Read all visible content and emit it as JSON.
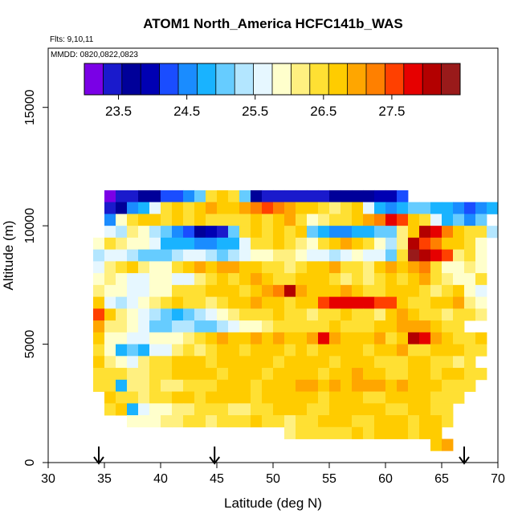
{
  "chart_data": {
    "type": "heatmap",
    "title": "ATOM1 North_America HCFC141b_WAS",
    "flights_label": "Flts: 9,10,11",
    "dates_label": "MMDD: 0820,0822,0823",
    "xlabel": "Latitude (deg N)",
    "ylabel": "Altitude (m)",
    "xlim": [
      30,
      70
    ],
    "ylim": [
      0,
      17500
    ],
    "x_ticks": [
      30,
      35,
      40,
      45,
      50,
      55,
      60,
      65,
      70
    ],
    "y_ticks": [
      0,
      5000,
      10000,
      15000
    ],
    "colorbar": {
      "range": [
        23,
        28.5
      ],
      "tick_values": [
        23.5,
        24.5,
        25.5,
        26.5,
        27.5
      ],
      "tick_labels": [
        "23.5",
        "24.5",
        "25.5",
        "26.5",
        "27.5"
      ],
      "colors": [
        "#7a00e6",
        "#1a1acc",
        "#000099",
        "#0000b3",
        "#1a4dff",
        "#1a8cff",
        "#19b3ff",
        "#66ccff",
        "#b3e6ff",
        "#e6f7ff",
        "#ffffcc",
        "#fff080",
        "#ffe033",
        "#ffcc00",
        "#ffa600",
        "#ff8000",
        "#ff4000",
        "#e60000",
        "#b30000",
        "#991a1a"
      ]
    },
    "arrows_latitude": [
      34.5,
      44.8,
      67.0
    ],
    "cell_size": {
      "lat": 1.0,
      "alt": 500
    },
    "rows": [
      {
        "alt": 11000,
        "lat_start": 35,
        "values": [
          23.1,
          23.3,
          23.5,
          23.6,
          23.7,
          24.1,
          24.3,
          24.6,
          25.0,
          26.4,
          26.8,
          26.5,
          25.2,
          23.6,
          23.5,
          23.4,
          23.4,
          23.4,
          23.4,
          23.5,
          23.6,
          23.6,
          23.7,
          23.8,
          23.9,
          24.0,
          24.1
        ]
      },
      {
        "alt": 10500,
        "lat_start": 35,
        "values": [
          23.4,
          23.7,
          24.5,
          24.9,
          25.5,
          26.3,
          26.6,
          26.5,
          26.7,
          26.9,
          26.6,
          26.8,
          26.9,
          27.3,
          27.5,
          27.2,
          27.0,
          26.7,
          26.6,
          26.5,
          26.2,
          26.4,
          26.7,
          25.5,
          24.8,
          24.6,
          24.8,
          25.0,
          25.2,
          24.9,
          24.7,
          24.5,
          24.3,
          24.6,
          24.8
        ]
      },
      {
        "alt": 10000,
        "lat_start": 35,
        "values": [
          24.5,
          25.8,
          26.3,
          26.6,
          26.8,
          26.4,
          26.7,
          26.5,
          26.6,
          26.5,
          26.4,
          26.3,
          26.5,
          26.6,
          26.4,
          26.7,
          26.9,
          26.3,
          25.9,
          26.1,
          26.5,
          26.3,
          26.6,
          26.9,
          27.3,
          27.9,
          27.6,
          26.8,
          26.5,
          25.5,
          24.9,
          25.1,
          24.6,
          25.1
        ]
      },
      {
        "alt": 9500,
        "lat_start": 35,
        "values": [
          25.6,
          25.4,
          26.2,
          26.0,
          25.4,
          25.1,
          24.5,
          24.2,
          23.6,
          24.0,
          23.3,
          25.0,
          26.3,
          26.8,
          26.5,
          26.6,
          26.4,
          26.6,
          25.2,
          24.9,
          24.6,
          24.6,
          24.7,
          24.9,
          25.0,
          25.2,
          26.1,
          26.8,
          28.2,
          27.8,
          27.2,
          26.8,
          26.3,
          26.4,
          25.4
        ]
      },
      {
        "alt": 9000,
        "lat_start": 34,
        "values": [
          25.9,
          26.3,
          26.1,
          25.9,
          25.8,
          25.6,
          24.9,
          24.8,
          24.7,
          24.6,
          24.6,
          24.8,
          24.9,
          25.7,
          26.3,
          26.5,
          26.6,
          26.4,
          26.2,
          26.0,
          26.3,
          26.7,
          26.9,
          26.7,
          26.3,
          25.8,
          25.4,
          26.1,
          28.2,
          27.5,
          27.2,
          26.8,
          26.6,
          26.3,
          25.8
        ]
      },
      {
        "alt": 8500,
        "lat_start": 34,
        "values": [
          25.3,
          25.7,
          25.6,
          25.3,
          25.2,
          25.1,
          25.2,
          25.4,
          25.5,
          25.6,
          25.4,
          25.1,
          25.3,
          25.6,
          25.8,
          25.9,
          26.1,
          26.2,
          25.8,
          25.6,
          25.5,
          25.4,
          25.6,
          25.8,
          25.7,
          25.5,
          25.2,
          26.5,
          28.3,
          28.0,
          27.9,
          27.6,
          26.2,
          26.5,
          25.8
        ]
      },
      {
        "alt": 8000,
        "lat_start": 34,
        "values": [
          25.6,
          26.2,
          26.5,
          26.6,
          26.2,
          25.8,
          25.8,
          26.4,
          26.7,
          26.9,
          26.8,
          27.0,
          26.9,
          26.7,
          26.6,
          26.5,
          26.3,
          26.2,
          26.5,
          26.6,
          26.7,
          26.9,
          26.5,
          26.3,
          26.1,
          26.6,
          26.9,
          26.8,
          27.0,
          27.2,
          26.4,
          26.0,
          25.9,
          26.1,
          25.9
        ]
      },
      {
        "alt": 7500,
        "lat_start": 34,
        "values": [
          25.9,
          26.1,
          25.8,
          25.5,
          25.6,
          25.8,
          25.9,
          25.7,
          25.6,
          26.1,
          26.3,
          26.6,
          26.5,
          26.7,
          26.9,
          26.6,
          26.3,
          26.4,
          26.7,
          26.8,
          26.6,
          26.4,
          26.2,
          26.3,
          26.2,
          26.4,
          26.7,
          26.5,
          26.6,
          26.9,
          26.5,
          26.2,
          25.8,
          26.0,
          26.3
        ]
      },
      {
        "alt": 7000,
        "lat_start": 34,
        "values": [
          26.2,
          25.8,
          25.9,
          25.5,
          25.6,
          25.8,
          26.0,
          26.3,
          26.5,
          26.4,
          26.6,
          26.8,
          26.7,
          26.5,
          26.6,
          26.9,
          27.2,
          28.0,
          26.9,
          26.7,
          26.6,
          26.8,
          26.9,
          26.7,
          26.5,
          26.4,
          26.6,
          26.8,
          26.6,
          26.3,
          26.1,
          26.4,
          26.8,
          25.9,
          25.7
        ]
      },
      {
        "alt": 6500,
        "lat_start": 34,
        "values": [
          26.7,
          25.6,
          25.3,
          25.5,
          25.9,
          26.1,
          26.4,
          26.6,
          26.5,
          26.3,
          26.2,
          26.4,
          26.6,
          26.7,
          26.9,
          26.8,
          26.7,
          26.4,
          26.6,
          26.8,
          27.5,
          27.7,
          27.8,
          27.9,
          27.8,
          27.6,
          27.5,
          26.7,
          26.5,
          26.3,
          26.6,
          26.8,
          27.0,
          26.2,
          25.9
        ]
      },
      {
        "alt": 6000,
        "lat_start": 34,
        "values": [
          27.6,
          26.8,
          26.2,
          25.9,
          25.7,
          25.4,
          25.2,
          24.9,
          25.1,
          25.3,
          25.5,
          25.8,
          26.2,
          26.4,
          26.3,
          26.5,
          26.6,
          26.4,
          26.3,
          26.2,
          26.4,
          26.5,
          26.6,
          26.5,
          26.3,
          26.2,
          26.6,
          26.9,
          26.7,
          26.5,
          26.4,
          26.2,
          26.5,
          26.3,
          26.2
        ]
      },
      {
        "alt": 5500,
        "lat_start": 34,
        "values": [
          26.9,
          26.2,
          26.1,
          25.8,
          25.5,
          25.2,
          25.0,
          25.3,
          25.4,
          25.2,
          25.1,
          25.4,
          25.6,
          25.8,
          26.0,
          26.2,
          26.4,
          26.5,
          26.4,
          26.3,
          26.5,
          26.7,
          26.5,
          26.4,
          26.3,
          26.6,
          26.8,
          27.0,
          27.1,
          26.9,
          26.7,
          26.5,
          26.4
        ]
      },
      {
        "alt": 5000,
        "lat_start": 34,
        "values": [
          26.6,
          26.0,
          25.8,
          25.5,
          25.7,
          25.9,
          25.9,
          26.0,
          26.2,
          26.4,
          26.6,
          26.9,
          26.7,
          26.8,
          27.0,
          26.8,
          26.9,
          26.7,
          26.6,
          27.0,
          27.7,
          26.9,
          26.7,
          26.6,
          26.8,
          26.9,
          26.5,
          26.8,
          28.0,
          27.7,
          27.0,
          26.8,
          26.5,
          26.3,
          26.6
        ]
      },
      {
        "alt": 4500,
        "lat_start": 34,
        "values": [
          26.5,
          25.9,
          24.8,
          25.2,
          24.9,
          25.5,
          25.7,
          26.1,
          26.3,
          26.1,
          26.4,
          26.7,
          26.6,
          26.5,
          26.8,
          26.6,
          26.7,
          26.5,
          26.6,
          26.4,
          26.6,
          26.8,
          26.7,
          26.6,
          26.4,
          26.6,
          26.7,
          26.9,
          26.5,
          26.3,
          26.6,
          26.8,
          26.7,
          26.5,
          26.4
        ]
      },
      {
        "alt": 4000,
        "lat_start": 34,
        "values": [
          26.6,
          26.2,
          25.9,
          25.6,
          26.2,
          26.4,
          26.5,
          26.6,
          26.7,
          26.6,
          26.5,
          26.6,
          26.7,
          26.8,
          26.7,
          26.6,
          26.5,
          26.6,
          26.7,
          26.8,
          26.6,
          26.5,
          26.7,
          26.8,
          26.6,
          26.4,
          26.3,
          26.5,
          26.7,
          26.6,
          26.4,
          26.3,
          26.2,
          26.4
        ]
      },
      {
        "alt": 3500,
        "lat_start": 34,
        "values": [
          26.4,
          26.3,
          26.5,
          26.2,
          26.1,
          26.3,
          26.5,
          26.6,
          26.8,
          26.7,
          26.6,
          26.5,
          26.7,
          26.8,
          26.6,
          26.5,
          26.6,
          26.7,
          26.8,
          26.6,
          26.5,
          26.7,
          26.8,
          26.9,
          26.7,
          26.6,
          26.5,
          26.4,
          26.6,
          26.7,
          26.5,
          26.6,
          26.7,
          26.5,
          26.4
        ]
      },
      {
        "alt": 3000,
        "lat_start": 34,
        "values": [
          26.5,
          26.3,
          24.9,
          26.1,
          26.2,
          26.3,
          26.2,
          26.1,
          26.3,
          26.4,
          26.5,
          26.6,
          26.7,
          26.6,
          26.5,
          26.6,
          26.7,
          26.8,
          26.9,
          26.9,
          26.8,
          26.9,
          26.8,
          26.9,
          27.0,
          26.9,
          26.8,
          26.9,
          26.8,
          26.7,
          26.6,
          26.5,
          26.4,
          26.3
        ]
      },
      {
        "alt": 2500,
        "lat_start": 35,
        "values": [
          26.6,
          26.5,
          26.3,
          26.2,
          26.4,
          26.5,
          26.7,
          26.6,
          26.5,
          26.6,
          26.7,
          26.8,
          26.6,
          26.5,
          26.6,
          26.7,
          26.8,
          26.7,
          26.6,
          26.5,
          26.7,
          26.8,
          26.6,
          26.5,
          26.4,
          26.6,
          26.7,
          26.8,
          26.6,
          26.5,
          26.4,
          26.3
        ]
      },
      {
        "alt": 2000,
        "lat_start": 35,
        "values": [
          26.5,
          26.6,
          24.9,
          25.7,
          25.9,
          26.0,
          26.1,
          26.2,
          26.3,
          26.5,
          26.4,
          26.2,
          26.1,
          26.3,
          26.5,
          26.6,
          26.7,
          26.6,
          26.5,
          26.4,
          26.6,
          26.7,
          26.8,
          26.7,
          26.6,
          26.5,
          26.4,
          26.6,
          26.7,
          26.5,
          26.4
        ]
      },
      {
        "alt": 1500,
        "lat_start": 37,
        "values": [
          25.8,
          25.9,
          26.0,
          26.1,
          26.2,
          26.3,
          26.4,
          26.2,
          26.3,
          26.4,
          26.5,
          26.6,
          26.4,
          26.3,
          26.2,
          26.4,
          26.5,
          26.6,
          26.7,
          26.6,
          26.5,
          26.4,
          26.6,
          26.8,
          26.6,
          26.5,
          26.7,
          26.6,
          26.5
        ]
      },
      {
        "alt": 1000,
        "lat_start": 51,
        "values": [
          26.2,
          26.3,
          26.4,
          26.3,
          26.4,
          26.5,
          26.6,
          26.5,
          26.6,
          26.7,
          26.6,
          26.5,
          26.6,
          26.7
        ]
      },
      {
        "alt": 500,
        "lat_start": 64,
        "values": [
          26.8,
          26.9
        ]
      }
    ]
  }
}
